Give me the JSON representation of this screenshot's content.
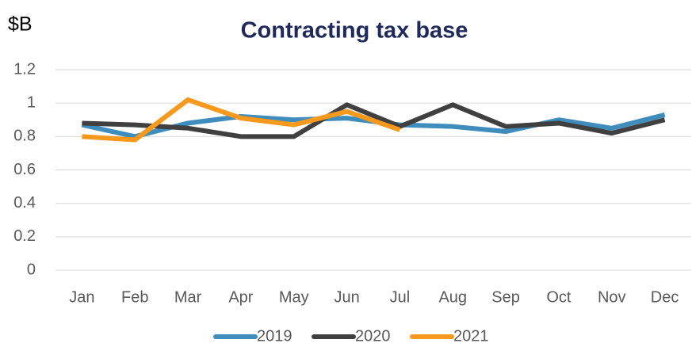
{
  "chart_data": {
    "type": "line",
    "title": "Contracting tax base",
    "ylabel": "$B",
    "categories": [
      "Jan",
      "Feb",
      "Mar",
      "Apr",
      "May",
      "Jun",
      "Jul",
      "Aug",
      "Sep",
      "Oct",
      "Nov",
      "Dec"
    ],
    "series": [
      {
        "name": "2019",
        "color": "#3e8dbd",
        "values": [
          0.87,
          0.8,
          0.88,
          0.92,
          0.9,
          0.91,
          0.87,
          0.86,
          0.83,
          0.9,
          0.85,
          0.93
        ]
      },
      {
        "name": "2020",
        "color": "#404040",
        "values": [
          0.88,
          0.87,
          0.85,
          0.8,
          0.8,
          0.99,
          0.86,
          0.99,
          0.86,
          0.88,
          0.82,
          0.9
        ]
      },
      {
        "name": "2021",
        "color": "#f7991c",
        "values": [
          0.8,
          0.78,
          1.02,
          0.91,
          0.87,
          0.95,
          0.84,
          null,
          null,
          null,
          null,
          null
        ]
      }
    ],
    "ylim": [
      0,
      1.2
    ],
    "yticks": [
      0,
      0.2,
      0.4,
      0.6,
      0.8,
      1,
      1.2
    ],
    "grid": true,
    "legend": "bottom"
  }
}
